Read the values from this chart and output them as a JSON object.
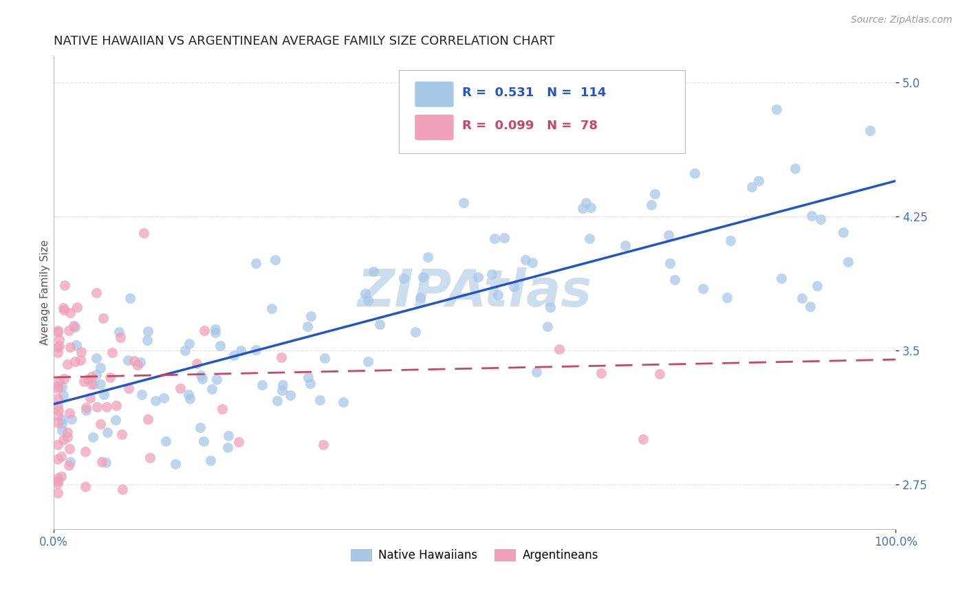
{
  "title": "NATIVE HAWAIIAN VS ARGENTINEAN AVERAGE FAMILY SIZE CORRELATION CHART",
  "source": "Source: ZipAtlas.com",
  "xlabel": "",
  "ylabel": "Average Family Size",
  "xmin": 0.0,
  "xmax": 1.0,
  "ymin": 2.5,
  "ymax": 5.15,
  "yticks": [
    2.75,
    3.5,
    4.25,
    5.0
  ],
  "xtick_labels": [
    "0.0%",
    "100.0%"
  ],
  "title_fontsize": 13,
  "source_fontsize": 10,
  "ylabel_fontsize": 11,
  "tick_fontsize": 12,
  "legend_r1": "R =  0.531",
  "legend_n1": "N =  114",
  "legend_r2": "R =  0.099",
  "legend_n2": "N =  78",
  "blue_color": "#a8c8e8",
  "pink_color": "#f0a0b8",
  "blue_line_color": "#2255cc",
  "pink_line_color": "#cc4466",
  "grid_color": "#dddddd",
  "title_color": "#222222",
  "axis_color": "#4472c4",
  "watermark_color": "#ccdded",
  "blue_trend_x0": 0.0,
  "blue_trend_x1": 1.0,
  "blue_trend_y0": 3.2,
  "blue_trend_y1": 4.45,
  "pink_trend_x0": 0.0,
  "pink_trend_x1": 1.0,
  "pink_trend_y0": 3.35,
  "pink_trend_y1": 3.45
}
